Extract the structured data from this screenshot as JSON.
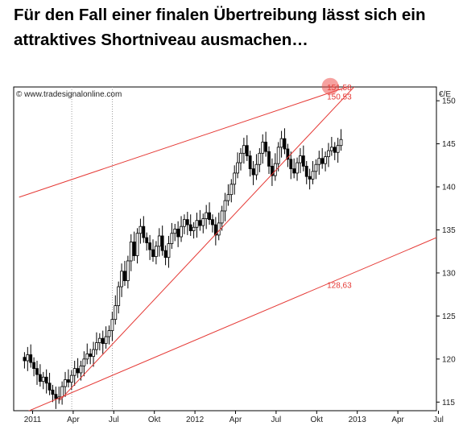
{
  "headline": "Für den Fall einer finalen Übertreibung lässt sich ein attraktives Shortniveau ausmachen…",
  "watermark": "© www.tradesignalonline.com",
  "colors": {
    "trendline": "#e53935",
    "candle": "#000000",
    "marker": "#ef5350",
    "grid": "#9e9e9e"
  },
  "chart_data": {
    "type": "candlestick",
    "y_unit": "€/E",
    "ylim": [
      114,
      151.6
    ],
    "y_ticks": [
      115,
      120,
      125,
      130,
      135,
      140,
      145,
      150
    ],
    "x_ticks": [
      "2011",
      "Apr",
      "Jul",
      "Okt",
      "2012",
      "Apr",
      "Jul",
      "Okt",
      "2013",
      "Apr",
      "Jul"
    ],
    "x_tick_dates": [
      "2011-01",
      "2011-04",
      "2011-07",
      "2011-10",
      "2012-01",
      "2012-04",
      "2012-07",
      "2012-10",
      "2013-01",
      "2013-04",
      "2013-07"
    ],
    "grid": "vertical dotted lines at Apr 2011 and Jul 2011",
    "weekly_close": [
      119.8,
      120.5,
      119.6,
      118.9,
      118.2,
      117.4,
      117.9,
      117.2,
      116.4,
      115.9,
      115.4,
      115.6,
      116.8,
      117.6,
      117.3,
      118.1,
      118.9,
      118.4,
      119.2,
      120.0,
      120.6,
      120.3,
      121.1,
      121.9,
      122.4,
      121.8,
      122.6,
      123.3,
      124.6,
      126.2,
      128.4,
      130.2,
      129.1,
      131.4,
      133.6,
      132.0,
      134.6,
      135.4,
      134.1,
      133.5,
      132.7,
      131.9,
      133.1,
      134.3,
      132.6,
      131.8,
      133.4,
      134.6,
      135.1,
      134.2,
      135.4,
      136.2,
      135.6,
      134.9,
      135.3,
      136.1,
      135.5,
      136.3,
      137.0,
      136.2,
      135.6,
      134.4,
      135.8,
      137.2,
      138.4,
      139.1,
      140.3,
      141.6,
      142.8,
      143.9,
      144.8,
      143.6,
      142.1,
      141.4,
      142.6,
      143.9,
      145.2,
      144.1,
      142.4,
      141.3,
      142.7,
      144.6,
      145.6,
      144.4,
      143.2,
      142.1,
      141.6,
      142.8,
      143.6,
      142.4,
      141.2,
      140.9,
      141.8,
      142.6,
      143.3,
      142.7,
      143.5,
      144.2,
      144.6,
      144.0,
      144.8,
      145.5
    ],
    "trendlines": [
      {
        "from": {
          "date": "2010-12",
          "value": 138.8
        },
        "to": {
          "date": "2013-01",
          "value": 152.0
        }
      },
      {
        "from": {
          "date": "2010-12",
          "value": 113.5
        },
        "to": {
          "date": "2013-07",
          "value": 134.2
        }
      },
      {
        "from": {
          "date": "2011-03",
          "value": 115.2
        },
        "to": {
          "date": "2013-01",
          "value": 152.0
        }
      }
    ],
    "annotations": [
      {
        "text": "151,58",
        "date": "2012-11",
        "value": 151.58,
        "marker": true
      },
      {
        "text": "150,53",
        "date": "2012-11",
        "value": 150.53
      },
      {
        "text": "128,63",
        "date": "2012-11",
        "value": 128.63
      }
    ]
  }
}
